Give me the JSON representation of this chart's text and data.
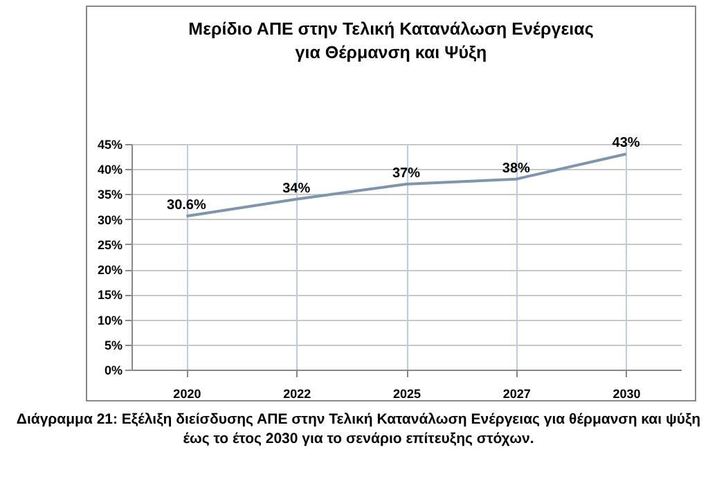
{
  "chart_data": {
    "type": "line",
    "title": "Μερίδιο ΑΠΕ στην Τελική Κατανάλωση Ενέργειας για Θέρμανση και Ψύξη",
    "categories": [
      "2020",
      "2022",
      "2025",
      "2027",
      "2030"
    ],
    "series": [
      {
        "color": "#7f95ad",
        "values": [
          30.6,
          34,
          37,
          38,
          43
        ],
        "value_labels": [
          "30.6%",
          "34%",
          "37%",
          "38%",
          "43%"
        ]
      }
    ],
    "ylim": [
      0,
      45
    ],
    "yticks": [
      {
        "value": 0,
        "label": "0%"
      },
      {
        "value": 5,
        "label": "5%"
      },
      {
        "value": 10,
        "label": "10%"
      },
      {
        "value": 15,
        "label": "15%"
      },
      {
        "value": 20,
        "label": "20%"
      },
      {
        "value": 25,
        "label": "25%"
      },
      {
        "value": 30,
        "label": "30%"
      },
      {
        "value": 35,
        "label": "35%"
      },
      {
        "value": 40,
        "label": "40%"
      },
      {
        "value": 45,
        "label": "45%"
      }
    ],
    "grid": true,
    "annotations": [
      "Διάγραμμα 21: Εξέλιξη διείσδυσης ΑΠΕ στην Τελική Κατανάλωση Ενέργειας για θέρμανση και ψύξη έως το έτος 2030 για το σενάριο επίτευξης στόχων."
    ]
  }
}
